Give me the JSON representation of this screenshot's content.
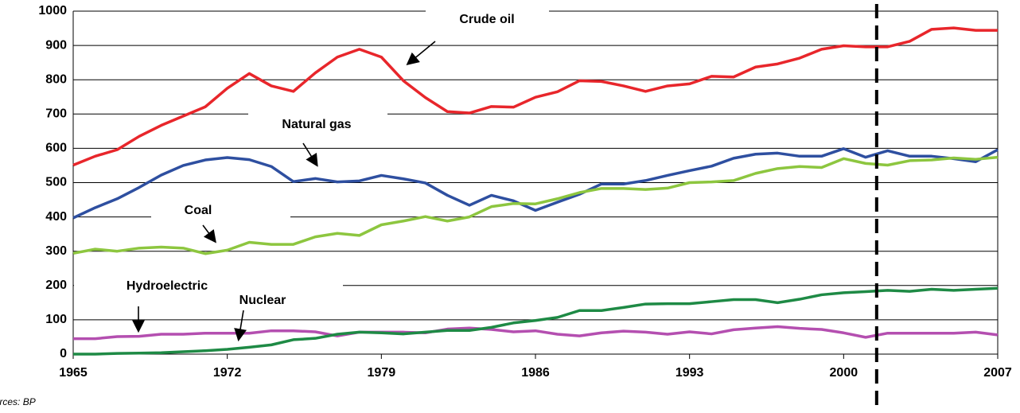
{
  "chart_data": {
    "type": "line",
    "source": "Sources: BP",
    "x": [
      1965,
      1966,
      1967,
      1968,
      1969,
      1970,
      1971,
      1972,
      1973,
      1974,
      1975,
      1976,
      1977,
      1978,
      1979,
      1980,
      1981,
      1982,
      1983,
      1984,
      1985,
      1986,
      1987,
      1988,
      1989,
      1990,
      1991,
      1992,
      1993,
      1994,
      1995,
      1996,
      1997,
      1998,
      1999,
      2000,
      2001,
      2002,
      2003,
      2004,
      2005,
      2006,
      2007
    ],
    "series": [
      {
        "name": "Crude oil",
        "color": "#e8262b",
        "values": [
          551,
          577,
          596,
          635,
          667,
          694,
          721,
          775,
          818,
          782,
          766,
          820,
          866,
          889,
          866,
          797,
          748,
          707,
          703,
          722,
          720,
          749,
          765,
          797,
          795,
          782,
          766,
          782,
          788,
          810,
          808,
          837,
          846,
          863,
          889,
          899,
          896,
          896,
          912,
          947,
          951,
          944,
          944
        ]
      },
      {
        "name": "Natural gas",
        "color": "#2e4fa0",
        "values": [
          397,
          427,
          453,
          486,
          522,
          550,
          566,
          573,
          567,
          547,
          503,
          512,
          502,
          505,
          521,
          511,
          499,
          463,
          434,
          463,
          447,
          419,
          443,
          466,
          496,
          496,
          506,
          521,
          535,
          548,
          571,
          583,
          586,
          577,
          577,
          599,
          574,
          593,
          577,
          577,
          570,
          561,
          596
        ]
      },
      {
        "name": "Coal",
        "color": "#8dc63f",
        "values": [
          294,
          306,
          300,
          309,
          312,
          309,
          293,
          303,
          326,
          320,
          320,
          342,
          352,
          346,
          377,
          388,
          401,
          388,
          400,
          430,
          439,
          438,
          453,
          471,
          483,
          483,
          480,
          484,
          500,
          502,
          506,
          527,
          541,
          547,
          544,
          570,
          556,
          551,
          564,
          566,
          572,
          568,
          574
        ]
      },
      {
        "name": "Hydroelectric",
        "color": "#b44fb0",
        "values": [
          45,
          45,
          51,
          52,
          58,
          58,
          61,
          61,
          61,
          68,
          68,
          65,
          53,
          64,
          64,
          64,
          62,
          73,
          76,
          72,
          65,
          68,
          58,
          53,
          62,
          67,
          64,
          58,
          65,
          59,
          71,
          76,
          80,
          75,
          72,
          62,
          49,
          61,
          61,
          61,
          61,
          64,
          56
        ]
      },
      {
        "name": "Nuclear",
        "color": "#1e8a45",
        "values": [
          0,
          0,
          2,
          3,
          4,
          7,
          10,
          14,
          20,
          27,
          42,
          46,
          58,
          64,
          62,
          59,
          64,
          69,
          69,
          78,
          91,
          98,
          107,
          127,
          127,
          136,
          146,
          147,
          147,
          153,
          159,
          159,
          150,
          160,
          173,
          179,
          182,
          186,
          183,
          189,
          186,
          189,
          192
        ]
      }
    ],
    "xlim": [
      1965,
      2007
    ],
    "xticks": [
      1965,
      1972,
      1979,
      1986,
      1993,
      2000,
      2007
    ],
    "ylim": [
      0,
      1000
    ],
    "yticks": [
      0,
      100,
      200,
      300,
      400,
      500,
      600,
      700,
      800,
      900,
      1000
    ],
    "grid": true,
    "reference_line": {
      "x": 2001.5,
      "style": "dashed",
      "color": "#000000"
    }
  }
}
